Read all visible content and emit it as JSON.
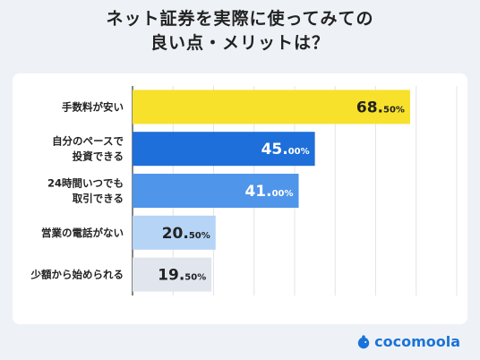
{
  "header": {
    "title_line1": "ネット証券を実際に使ってみての",
    "title_line2": "良い点・メリットは？"
  },
  "brand": {
    "name": "cocomoola",
    "color": "#1a73d9"
  },
  "chart_data": {
    "type": "bar",
    "orientation": "horizontal",
    "categories": [
      [
        "手数料が安い"
      ],
      [
        "自分のペースで",
        "投資できる"
      ],
      [
        "24時間いつでも",
        "取引できる"
      ],
      [
        "営業の電話がない"
      ],
      [
        "少額から始められる"
      ]
    ],
    "values": [
      68.5,
      45.0,
      41.0,
      20.5,
      19.5
    ],
    "value_labels": [
      {
        "int": "68.",
        "dec": "50%"
      },
      {
        "int": "45.",
        "dec": "00%"
      },
      {
        "int": "41.",
        "dec": "00%"
      },
      {
        "int": "20.",
        "dec": "50%"
      },
      {
        "int": "19.",
        "dec": "50%"
      }
    ],
    "colors": [
      "#f7e12b",
      "#1e6fd9",
      "#4f95ea",
      "#b6d4f5",
      "#e1e6ee"
    ],
    "label_colors": [
      "#222222",
      "#ffffff",
      "#ffffff",
      "#222222",
      "#222222"
    ],
    "xlim": [
      0,
      80
    ],
    "grid": true
  }
}
